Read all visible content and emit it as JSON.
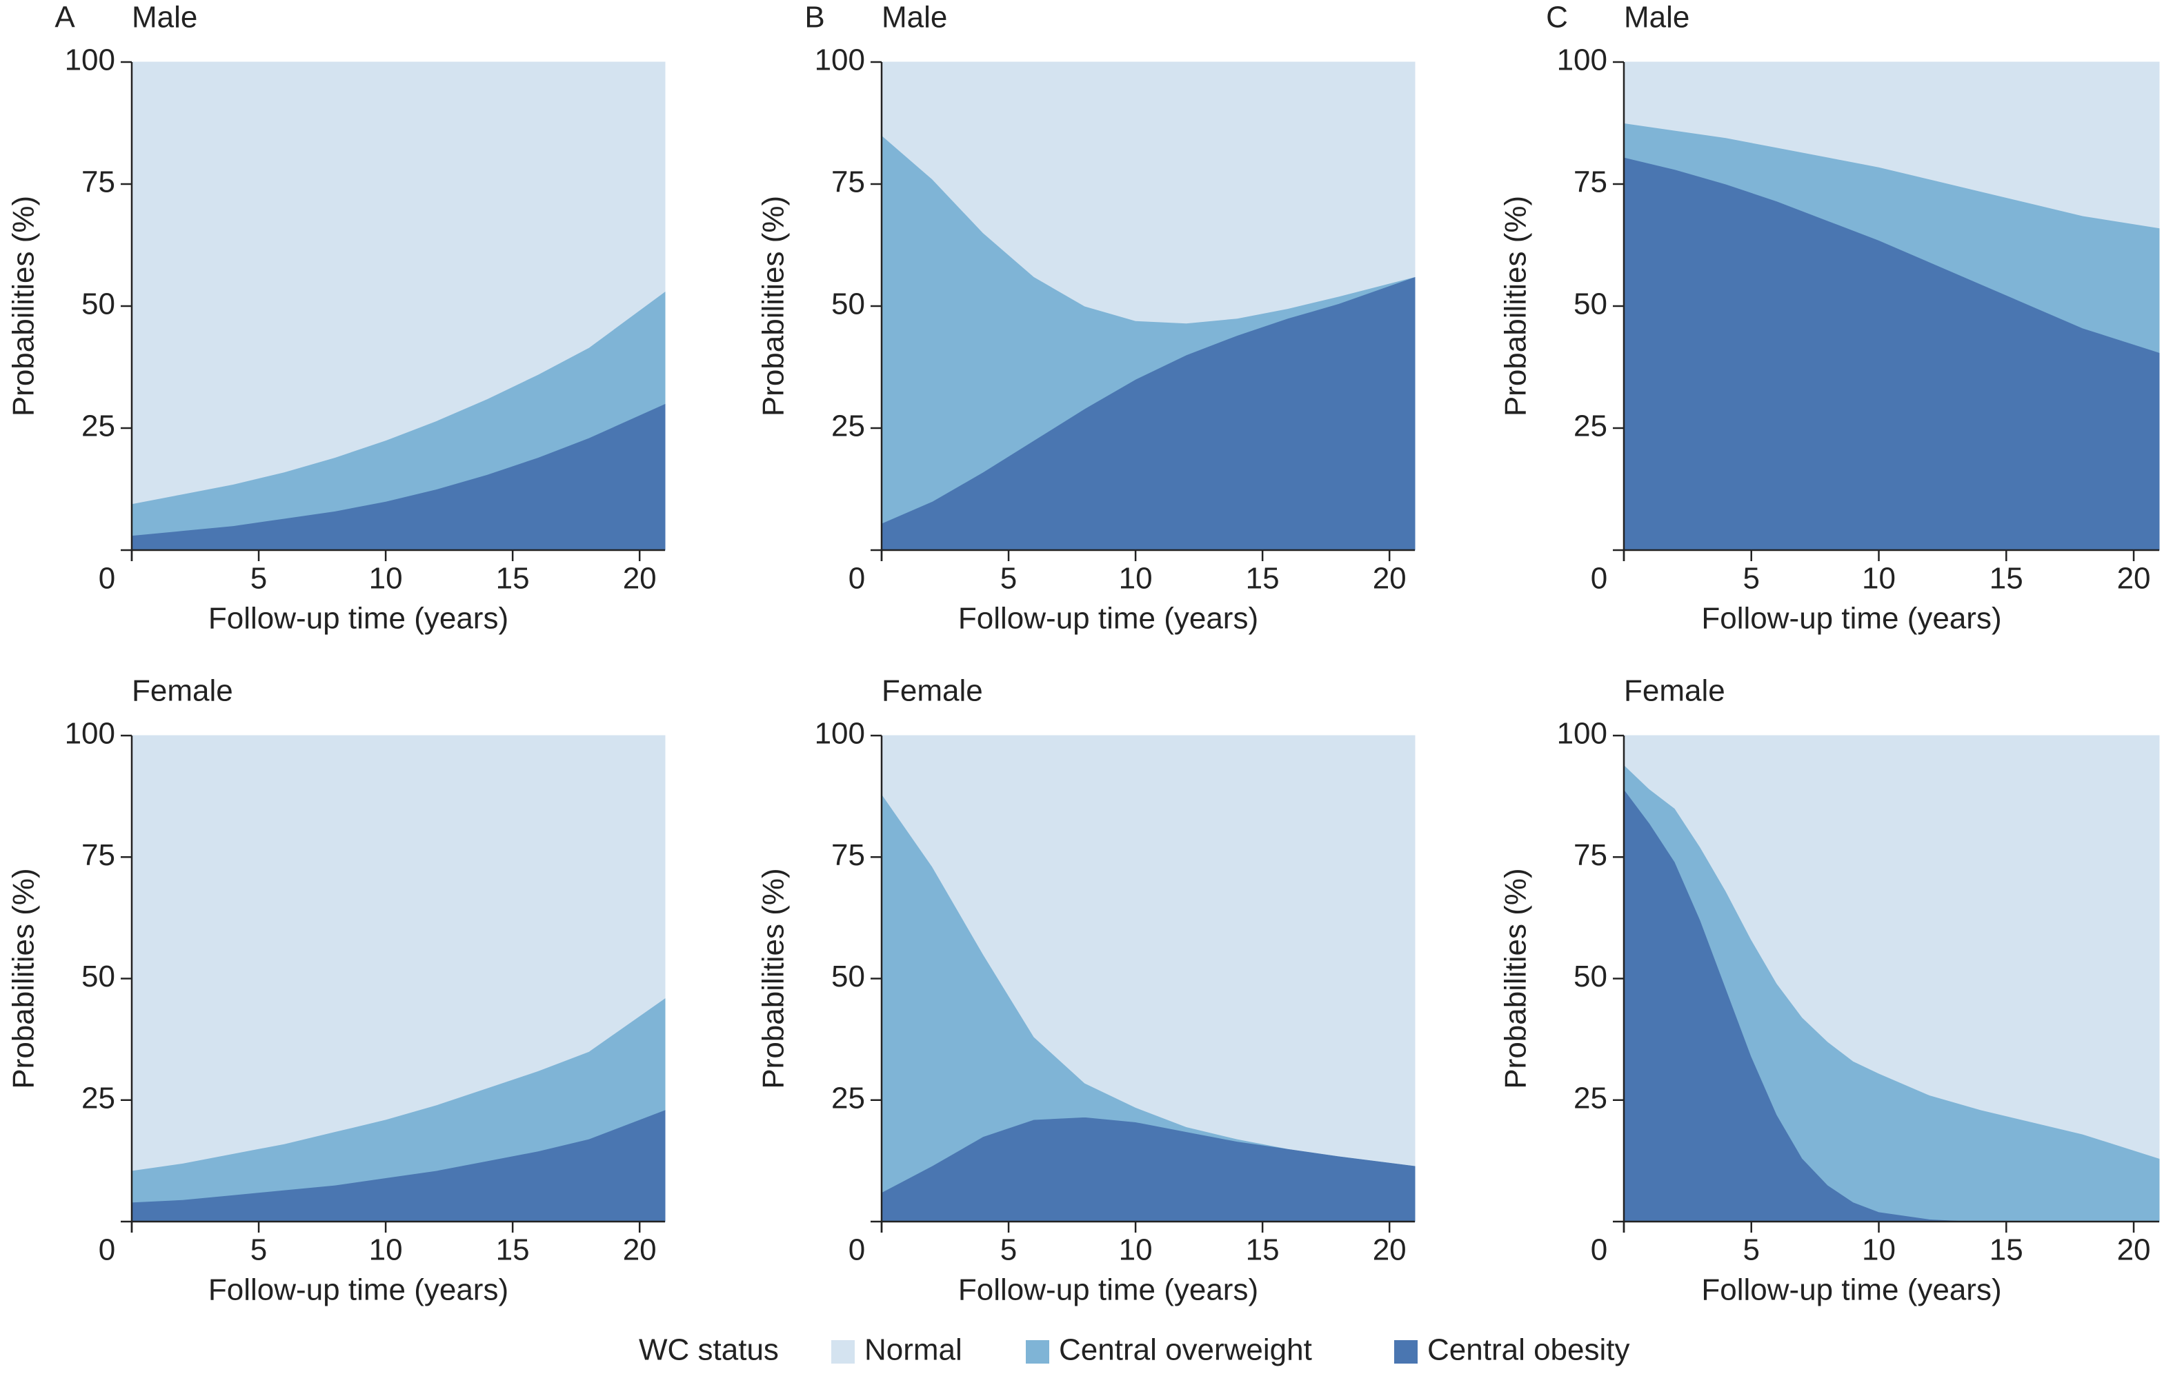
{
  "legend": {
    "title": "WC status"
  },
  "chart_data": [
    {
      "type": "area",
      "panel": "A",
      "title": "Male",
      "xlabel": "Follow-up time (years)",
      "ylabel": "Probabilities (%)",
      "x": [
        0,
        2,
        4,
        6,
        8,
        10,
        12,
        14,
        16,
        18,
        21
      ],
      "series": [
        {
          "name": "Normal",
          "color": "#d4e3f0",
          "values": [
            90.5,
            88.5,
            86.5,
            84,
            81,
            77.5,
            73.5,
            69,
            64,
            58.5,
            47
          ]
        },
        {
          "name": "Central overweight",
          "color": "#7fb4d6",
          "values": [
            6.5,
            7.5,
            8.5,
            9.5,
            11,
            12.5,
            14,
            15.5,
            17,
            18.5,
            23
          ]
        },
        {
          "name": "Central obesity",
          "color": "#4a76b1",
          "values": [
            3,
            4,
            5,
            6.5,
            8,
            10,
            12.5,
            15.5,
            19,
            23,
            30
          ]
        }
      ],
      "xlim": [
        0,
        21
      ],
      "ylim": [
        0,
        100
      ],
      "xticks": [
        0,
        5,
        10,
        15,
        20
      ],
      "yticks": [
        25,
        50,
        75,
        100
      ]
    },
    {
      "type": "area",
      "panel": "B",
      "title": "Male",
      "xlabel": "Follow-up time (years)",
      "ylabel": "Probabilities (%)",
      "x": [
        0,
        2,
        4,
        6,
        8,
        10,
        12,
        14,
        16,
        18,
        21
      ],
      "series": [
        {
          "name": "Normal",
          "color": "#d4e3f0",
          "values": [
            15,
            24,
            35,
            44,
            50,
            53,
            53.5,
            52.5,
            50.5,
            48,
            44
          ]
        },
        {
          "name": "Central overweight",
          "color": "#7fb4d6",
          "values": [
            79.5,
            66,
            49,
            33.5,
            21,
            12,
            6.5,
            3.5,
            2,
            1.5,
            0
          ]
        },
        {
          "name": "Central obesity",
          "color": "#4a76b1",
          "values": [
            5.5,
            10,
            16,
            22.5,
            29,
            35,
            40,
            44,
            47.5,
            50.5,
            56
          ]
        }
      ],
      "xlim": [
        0,
        21
      ],
      "ylim": [
        0,
        100
      ],
      "xticks": [
        0,
        5,
        10,
        15,
        20
      ],
      "yticks": [
        25,
        50,
        75,
        100
      ]
    },
    {
      "type": "area",
      "panel": "C",
      "title": "Male",
      "xlabel": "Follow-up time (years)",
      "ylabel": "Probabilities (%)",
      "x": [
        0,
        2,
        4,
        6,
        8,
        10,
        12,
        14,
        16,
        18,
        21
      ],
      "series": [
        {
          "name": "Normal",
          "color": "#d4e3f0",
          "values": [
            12.5,
            14,
            15.5,
            17.5,
            19.5,
            21.5,
            24,
            26.5,
            29,
            31.5,
            34
          ]
        },
        {
          "name": "Central overweight",
          "color": "#7fb4d6",
          "values": [
            7,
            8,
            9.5,
            11,
            13,
            15,
            17,
            19,
            21,
            23,
            25.5
          ]
        },
        {
          "name": "Central obesity",
          "color": "#4a76b1",
          "values": [
            80.5,
            78,
            75,
            71.5,
            67.5,
            63.5,
            59,
            54.5,
            50,
            45.5,
            40.5
          ]
        }
      ],
      "xlim": [
        0,
        21
      ],
      "ylim": [
        0,
        100
      ],
      "xticks": [
        0,
        5,
        10,
        15,
        20
      ],
      "yticks": [
        25,
        50,
        75,
        100
      ]
    },
    {
      "type": "area",
      "title": "Female",
      "xlabel": "Follow-up time (years)",
      "ylabel": "Probabilities (%)",
      "x": [
        0,
        2,
        4,
        6,
        8,
        10,
        12,
        14,
        16,
        18,
        21
      ],
      "series": [
        {
          "name": "Normal",
          "color": "#d4e3f0",
          "values": [
            89.5,
            88,
            86,
            84,
            81.5,
            79,
            76,
            72.5,
            69,
            65,
            54
          ]
        },
        {
          "name": "Central overweight",
          "color": "#7fb4d6",
          "values": [
            6.5,
            7.5,
            8.5,
            9.5,
            11,
            12,
            13.5,
            15,
            16.5,
            18,
            23
          ]
        },
        {
          "name": "Central obesity",
          "color": "#4a76b1",
          "values": [
            4,
            4.5,
            5.5,
            6.5,
            7.5,
            9,
            10.5,
            12.5,
            14.5,
            17,
            23
          ]
        }
      ],
      "xlim": [
        0,
        21
      ],
      "ylim": [
        0,
        100
      ],
      "xticks": [
        0,
        5,
        10,
        15,
        20
      ],
      "yticks": [
        25,
        50,
        75,
        100
      ]
    },
    {
      "type": "area",
      "title": "Female",
      "xlabel": "Follow-up time (years)",
      "ylabel": "Probabilities (%)",
      "x": [
        0,
        2,
        4,
        6,
        8,
        10,
        12,
        14,
        16,
        18,
        21
      ],
      "series": [
        {
          "name": "Normal",
          "color": "#d4e3f0",
          "values": [
            12,
            27,
            45,
            62,
            71.5,
            76.5,
            80.5,
            83,
            85,
            86.5,
            88.5
          ]
        },
        {
          "name": "Central overweight",
          "color": "#7fb4d6",
          "values": [
            82,
            61.5,
            37.5,
            17,
            7,
            3,
            1,
            0.5,
            0,
            0,
            0
          ]
        },
        {
          "name": "Central obesity",
          "color": "#4a76b1",
          "values": [
            6,
            11.5,
            17.5,
            21,
            21.5,
            20.5,
            18.5,
            16.5,
            15,
            13.5,
            11.5
          ]
        }
      ],
      "xlim": [
        0,
        21
      ],
      "ylim": [
        0,
        100
      ],
      "xticks": [
        0,
        5,
        10,
        15,
        20
      ],
      "yticks": [
        25,
        50,
        75,
        100
      ]
    },
    {
      "type": "area",
      "title": "Female",
      "xlabel": "Follow-up time (years)",
      "ylabel": "Probabilities (%)",
      "x": [
        0,
        1,
        2,
        3,
        4,
        5,
        6,
        7,
        8,
        9,
        10,
        12,
        14,
        16,
        18,
        21
      ],
      "series": [
        {
          "name": "Normal",
          "color": "#d4e3f0",
          "values": [
            6,
            11,
            15,
            23,
            32,
            42,
            51,
            58,
            63,
            67,
            69.5,
            74,
            77,
            79.5,
            82,
            87
          ]
        },
        {
          "name": "Central overweight",
          "color": "#7fb4d6",
          "values": [
            5,
            7,
            11,
            15,
            20,
            24,
            27,
            29,
            29.5,
            29,
            28.5,
            25.5,
            23,
            20.5,
            18,
            13
          ]
        },
        {
          "name": "Central obesity",
          "color": "#4a76b1",
          "values": [
            89,
            82,
            74,
            62,
            48,
            34,
            22,
            13,
            7.5,
            4,
            2,
            0.5,
            0,
            0,
            0,
            0
          ]
        }
      ],
      "xlim": [
        0,
        21
      ],
      "ylim": [
        0,
        100
      ],
      "xticks": [
        0,
        5,
        10,
        15,
        20
      ],
      "yticks": [
        25,
        50,
        75,
        100
      ]
    }
  ]
}
